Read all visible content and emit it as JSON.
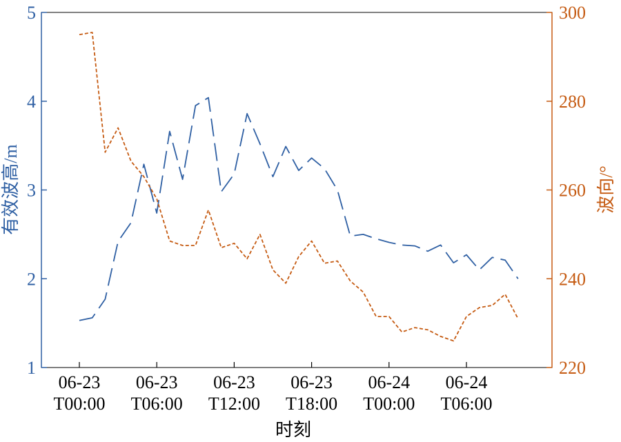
{
  "chart_data": {
    "type": "line",
    "xlabel": "时刻",
    "ylabel_left": "有效波高/m",
    "ylabel_right": "波向/°",
    "y_left_lim": [
      1,
      5
    ],
    "y_left_ticks": [
      "1",
      "2",
      "3",
      "4",
      "5"
    ],
    "y_right_lim": [
      220,
      300
    ],
    "y_right_ticks": [
      "220",
      "240",
      "260",
      "280",
      "300"
    ],
    "x_ticks": [
      {
        "line1": "06-23",
        "line2": "T00:00"
      },
      {
        "line1": "06-23",
        "line2": "T06:00"
      },
      {
        "line1": "06-23",
        "line2": "T12:00"
      },
      {
        "line1": "06-23",
        "line2": "T18:00"
      },
      {
        "line1": "06-24",
        "line2": "T00:00"
      },
      {
        "line1": "06-24",
        "line2": "T06:00"
      }
    ],
    "x_hours": [
      0,
      1,
      2,
      3,
      4,
      5,
      6,
      7,
      8,
      9,
      10,
      11,
      12,
      13,
      14,
      15,
      16,
      17,
      18,
      19,
      20,
      21,
      22,
      23,
      24,
      25,
      26,
      27,
      28,
      29,
      30,
      31,
      32,
      33,
      34
    ],
    "series": [
      {
        "axis": "left",
        "color": "#2e5fa3",
        "dash": "long-dash",
        "values": [
          1.53,
          1.56,
          1.77,
          2.42,
          2.63,
          3.29,
          2.74,
          3.66,
          3.12,
          3.95,
          4.04,
          2.98,
          3.18,
          3.86,
          3.52,
          3.15,
          3.49,
          3.22,
          3.36,
          3.24,
          3.0,
          2.48,
          2.5,
          2.45,
          2.41,
          2.38,
          2.37,
          2.31,
          2.38,
          2.18,
          2.27,
          2.1,
          2.24,
          2.21,
          2.0
        ]
      },
      {
        "axis": "right",
        "color": "#c55a11",
        "dash": "short-dash",
        "values": [
          295,
          295.5,
          268.5,
          274,
          266.5,
          263,
          258,
          248.5,
          247.5,
          247.5,
          255.5,
          247,
          248,
          244.5,
          250,
          242,
          239,
          245,
          248.5,
          243.5,
          244,
          239.5,
          237,
          231.5,
          231.5,
          228,
          229,
          228.5,
          227,
          226,
          231.5,
          233.5,
          234,
          236.5,
          231
        ]
      }
    ]
  }
}
